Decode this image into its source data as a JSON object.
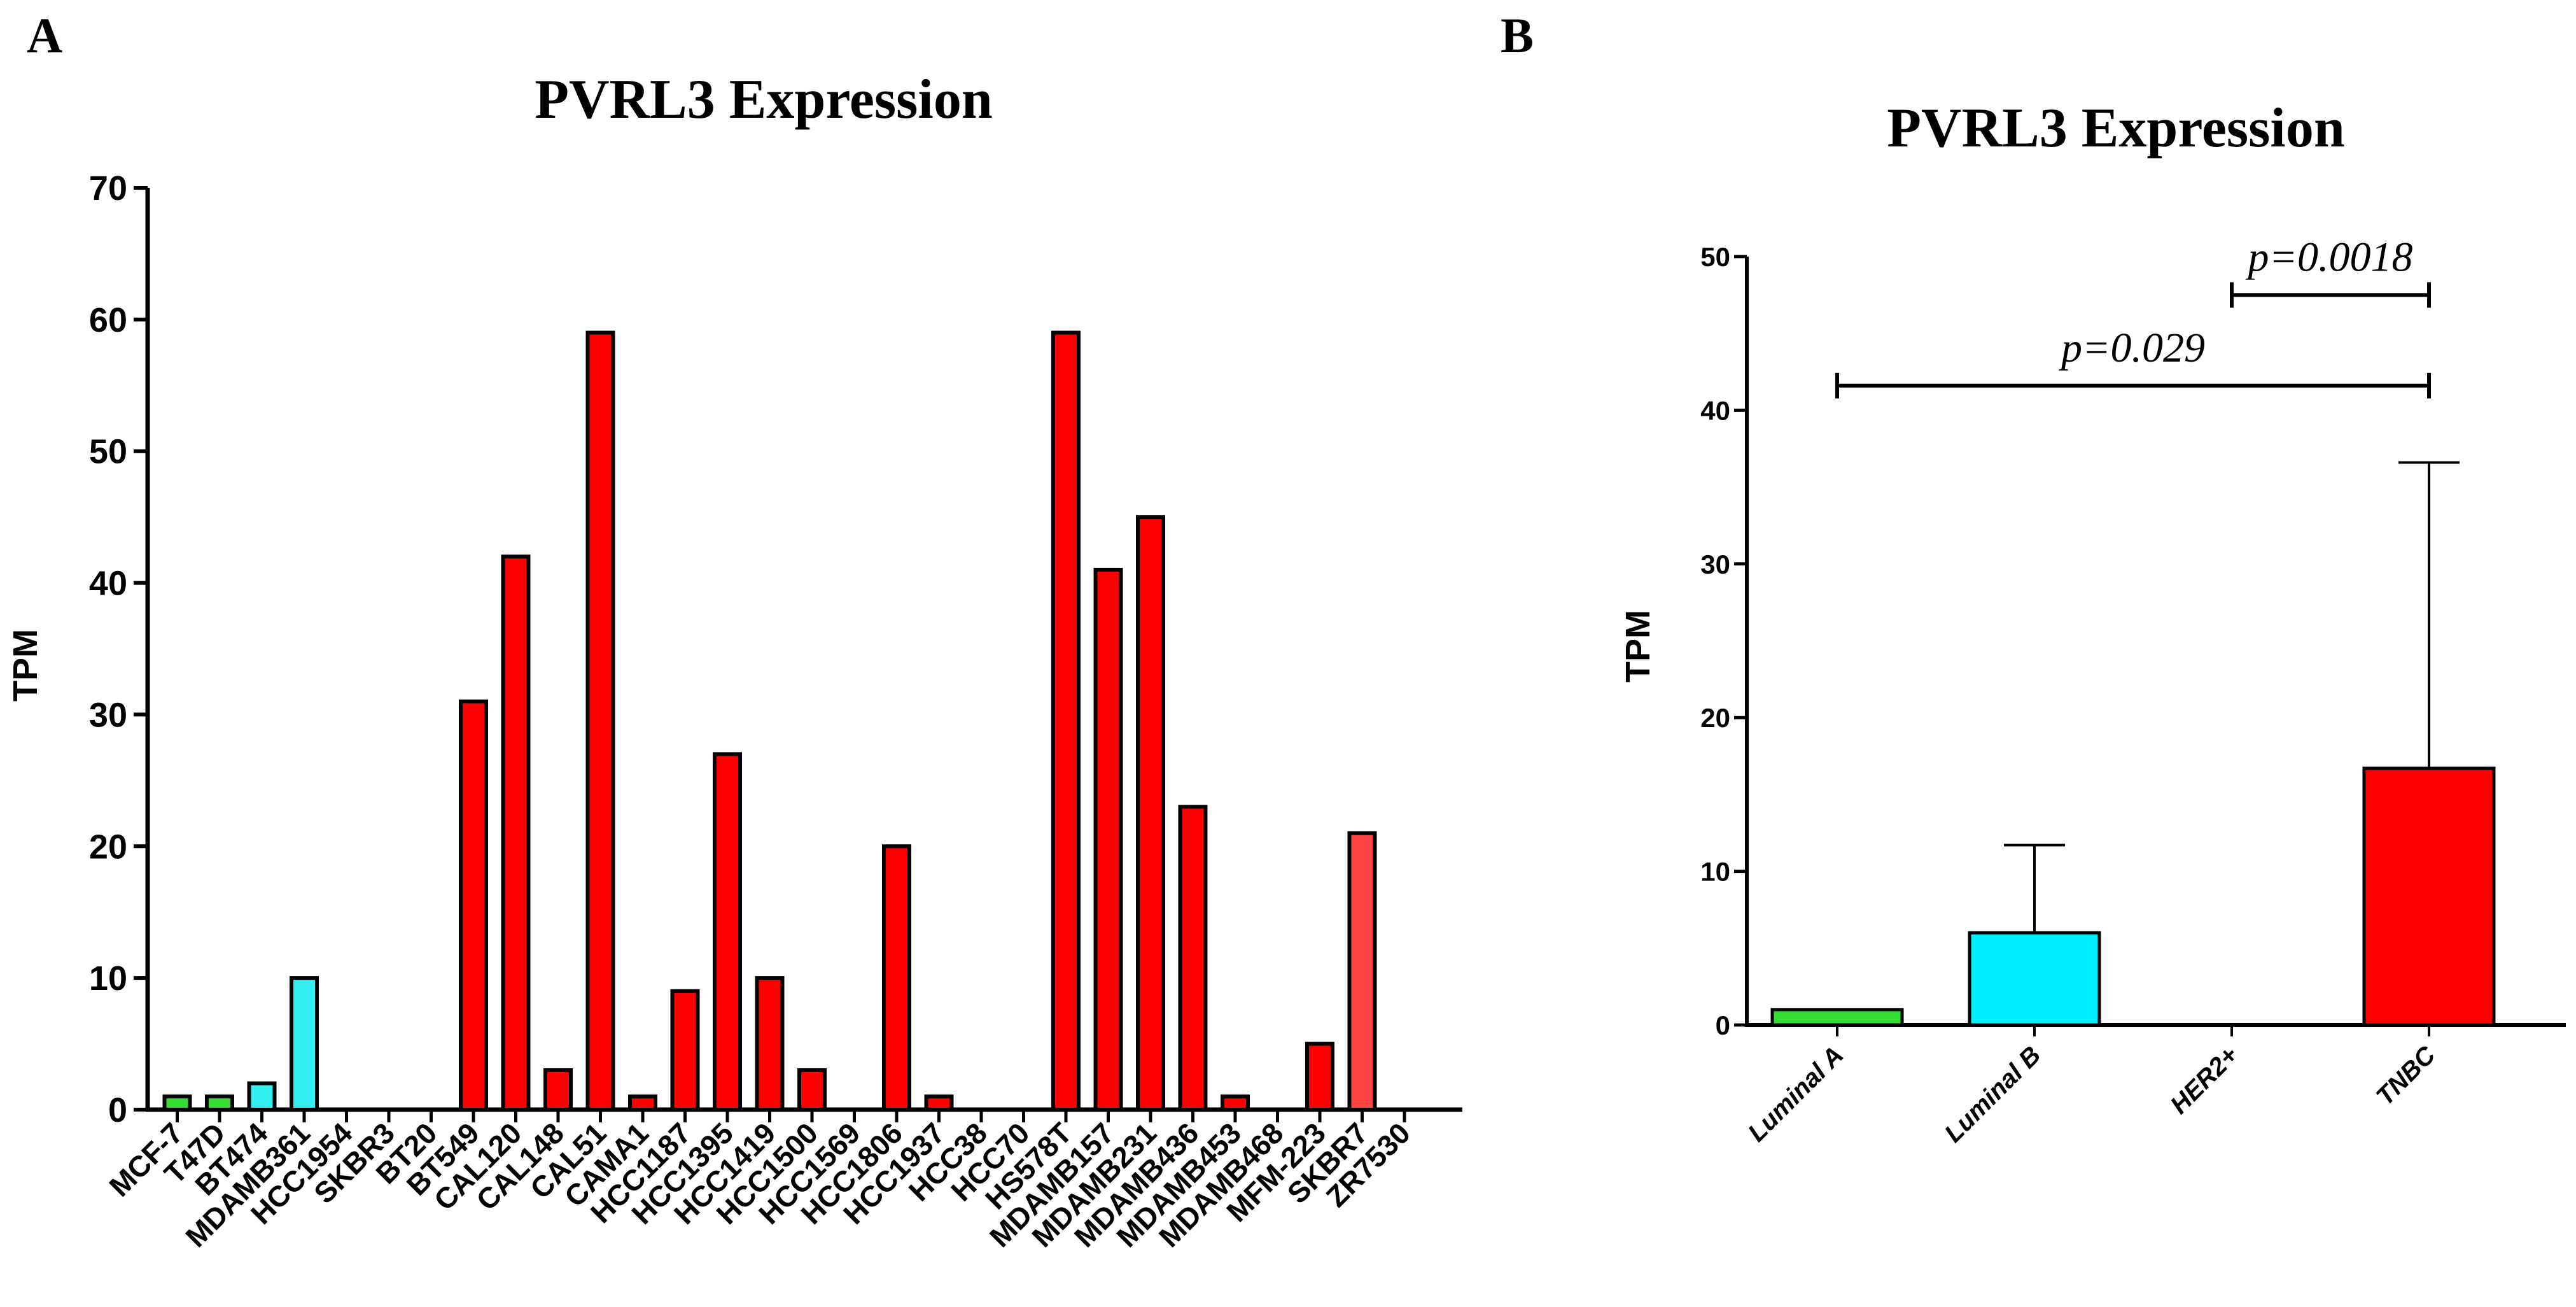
{
  "figure": {
    "panel_a_label": "A",
    "panel_b_label": "B"
  },
  "chart_data": [
    {
      "type": "bar",
      "panel": "A",
      "title": "PVRL3 Expression",
      "xlabel": "",
      "ylabel": "TPM",
      "ylim": [
        0,
        70
      ],
      "yticks": [
        0,
        10,
        20,
        30,
        40,
        50,
        60,
        70
      ],
      "categories": [
        "MCF-7",
        "T47D",
        "BT474",
        "MDAMB361",
        "HCC1954",
        "SKBR3",
        "BT20",
        "BT549",
        "CAL120",
        "CAL148",
        "CAL51",
        "CAMA1",
        "HCC1187",
        "HCC1395",
        "HCC1419",
        "HCC1500",
        "HCC1569",
        "HCC1806",
        "HCC1937",
        "HCC38",
        "HCC70",
        "HS578T",
        "MDAMB157",
        "MDAMB231",
        "MDAMB436",
        "MDAMB453",
        "MDAMB468",
        "MFM-223",
        "SKBR7",
        "ZR7530"
      ],
      "values": [
        1,
        1,
        2,
        10,
        0,
        0,
        0,
        31,
        42,
        3,
        59,
        1,
        9,
        27,
        10,
        3,
        0,
        20,
        1,
        0,
        0,
        59,
        41,
        45,
        23,
        1,
        0,
        5,
        21,
        0
      ],
      "colors": [
        "#33dd33",
        "#33dd33",
        "#33eeee",
        "#33eeee",
        "#33eeee",
        "#33eeee",
        "#ff0000",
        "#ff0000",
        "#ff0000",
        "#ff0000",
        "#ff0000",
        "#ff0000",
        "#ff0000",
        "#ff0000",
        "#ff0000",
        "#ff0000",
        "#ff0000",
        "#ff0000",
        "#ff0000",
        "#ff0000",
        "#ff0000",
        "#ff0000",
        "#ff0000",
        "#ff0000",
        "#ff0000",
        "#ff0000",
        "#ff0000",
        "#ff0000",
        "#ff4444",
        "#ff0000"
      ]
    },
    {
      "type": "bar",
      "panel": "B",
      "title": "PVRL3 Expression",
      "xlabel": "",
      "ylabel": "TPM",
      "ylim": [
        0,
        50
      ],
      "yticks": [
        0,
        10,
        20,
        30,
        40,
        50
      ],
      "categories": [
        "Luminal A",
        "Luminal B",
        "HER2+",
        "TNBC"
      ],
      "values": [
        1,
        6,
        0,
        16.7
      ],
      "error_upper": [
        null,
        11.7,
        null,
        36.6
      ],
      "colors": [
        "#33dd33",
        "#00eeff",
        "#ffffff",
        "#ff0000"
      ],
      "annotations": [
        {
          "text": "p=0.029",
          "from": "Luminal A",
          "to": "TNBC",
          "y": 41.6
        },
        {
          "text": "p=0.0018",
          "from": "HER2+",
          "to": "TNBC",
          "y": 47.5
        }
      ]
    }
  ]
}
